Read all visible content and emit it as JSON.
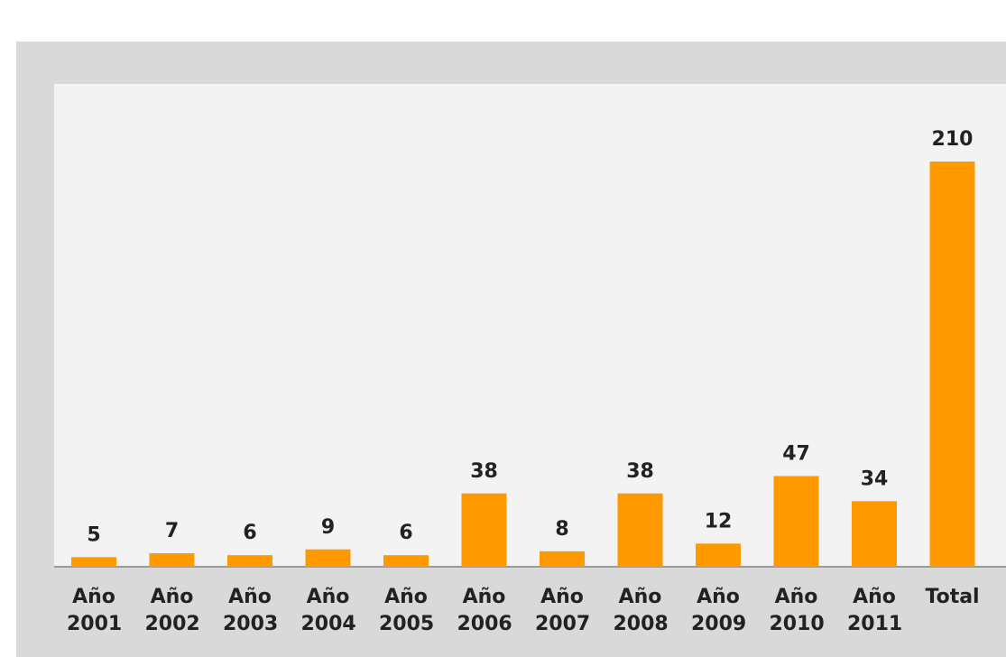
{
  "chart_data": {
    "type": "bar",
    "categories": [
      "Año 2001",
      "Año 2002",
      "Año 2003",
      "Año 2004",
      "Año 2005",
      "Año 2006",
      "Año 2007",
      "Año 2008",
      "Año 2009",
      "Año 2010",
      "Año 2011",
      "Total"
    ],
    "values": [
      5,
      7,
      6,
      9,
      6,
      38,
      8,
      38,
      12,
      47,
      34,
      210
    ],
    "color": "#ff9900"
  }
}
